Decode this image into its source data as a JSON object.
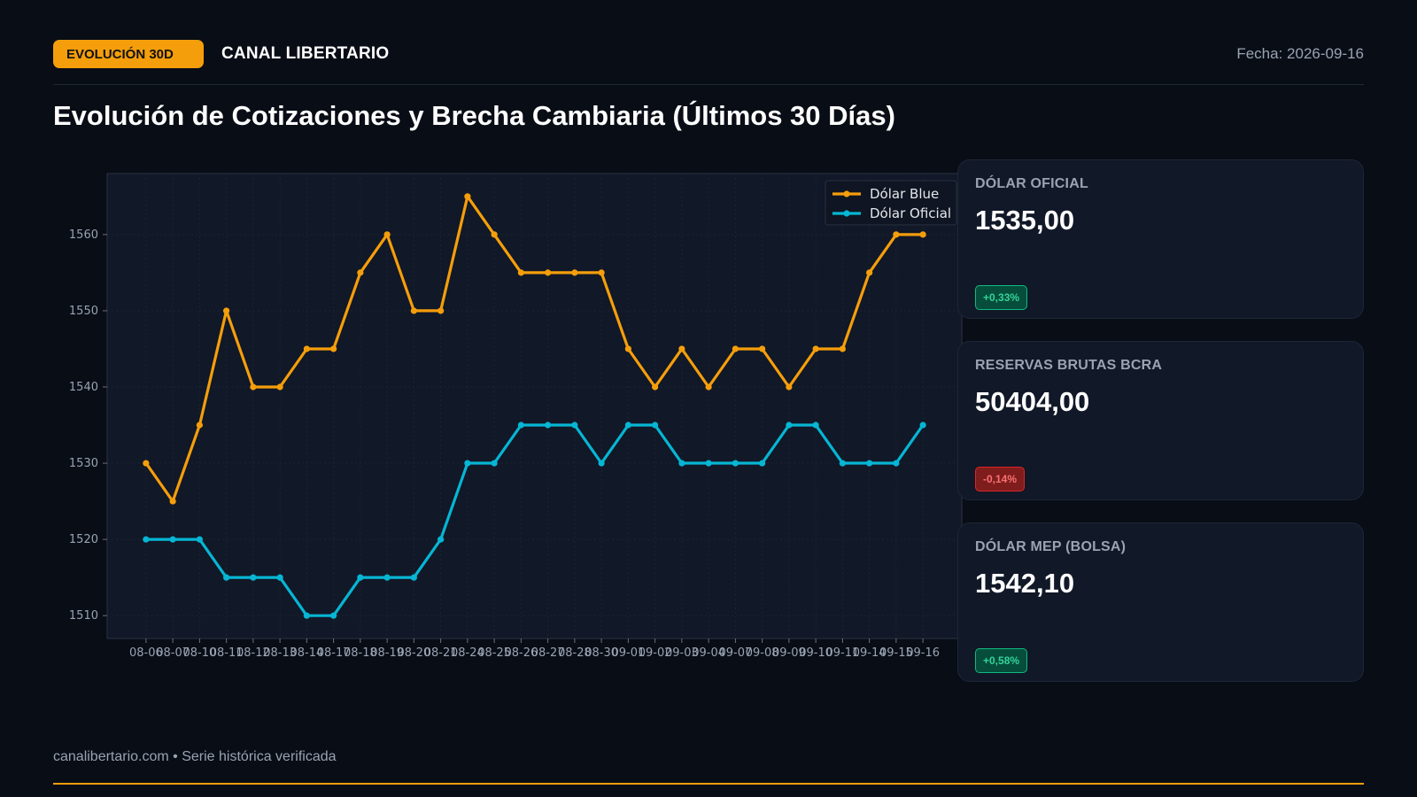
{
  "header": {
    "badge": "EVOLUCIÓN 30D",
    "brand": "CANAL LIBERTARIO",
    "date": "Fecha: 2026-09-16"
  },
  "title": "Evolución de Cotizaciones y Brecha Cambiaria (Últimos 30 Días)",
  "cards": [
    {
      "label": "DÓLAR OFICIAL",
      "value": "1535,00",
      "change": "+0,33%",
      "direction": "up"
    },
    {
      "label": "RESERVAS BRUTAS BCRA",
      "value": "50404,00",
      "change": "-0,14%",
      "direction": "down"
    },
    {
      "label": "DÓLAR MEP (BOLSA)",
      "value": "1542,10",
      "change": "+0,58%",
      "direction": "up"
    }
  ],
  "footer": {
    "text": "canalibertario.com • Serie histórica verificada"
  },
  "colors": {
    "accent": "#f59e0b",
    "blue_series": "#f59e0b",
    "oficial_series": "#06b6d4",
    "positive": "#10b981",
    "negative": "#dc2626"
  },
  "chart_data": {
    "type": "line",
    "title": "",
    "xlabel": "",
    "ylabel": "",
    "ylim": [
      1507,
      1568
    ],
    "yticks": [
      1510,
      1520,
      1530,
      1540,
      1550,
      1560
    ],
    "grid": true,
    "legend": "top-right",
    "x": [
      "08-06",
      "08-07",
      "08-10",
      "08-11",
      "08-12",
      "08-13",
      "08-14",
      "08-17",
      "08-18",
      "08-19",
      "08-20",
      "08-21",
      "08-24",
      "08-25",
      "08-26",
      "08-27",
      "08-28",
      "08-30",
      "09-01",
      "09-02",
      "09-03",
      "09-04",
      "09-07",
      "09-08",
      "09-09",
      "09-10",
      "09-11",
      "09-14",
      "09-15",
      "09-16"
    ],
    "series": [
      {
        "name": "Dólar Blue",
        "color": "#f59e0b",
        "values": [
          1530,
          1525,
          1535,
          1550,
          1540,
          1540,
          1545,
          1545,
          1555,
          1560,
          1550,
          1550,
          1565,
          1560,
          1555,
          1555,
          1555,
          1555,
          1545,
          1540,
          1545,
          1540,
          1545,
          1545,
          1540,
          1545,
          1545,
          1555,
          1560,
          1560
        ]
      },
      {
        "name": "Dólar Oficial",
        "color": "#06b6d4",
        "values": [
          1520,
          1520,
          1520,
          1515,
          1515,
          1515,
          1510,
          1510,
          1515,
          1515,
          1515,
          1520,
          1530,
          1530,
          1535,
          1535,
          1535,
          1530,
          1535,
          1535,
          1530,
          1530,
          1530,
          1530,
          1535,
          1535,
          1530,
          1530,
          1530,
          1535
        ]
      }
    ]
  }
}
